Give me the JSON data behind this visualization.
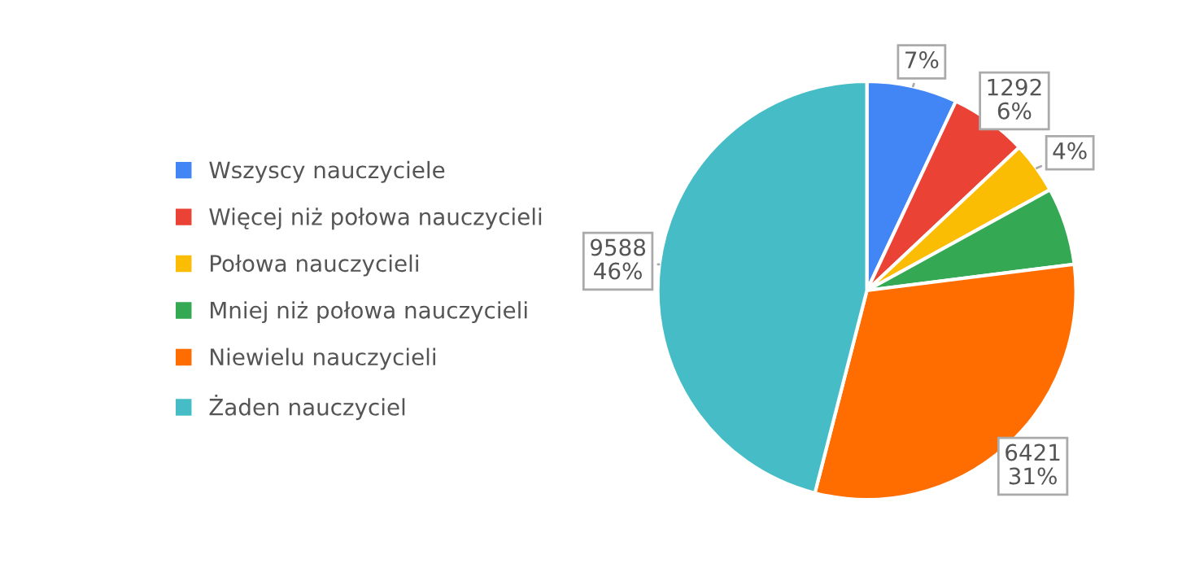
{
  "chart_data": {
    "type": "pie",
    "categories": [
      "Wszyscy nauczyciele",
      "Więcej niż połowa nauczycieli",
      "Połowa nauczycieli",
      "Mniej niż połowa nauczycieli",
      "Niewielu nauczycieli",
      "Żaden nauczyciel"
    ],
    "values": [
      7,
      6,
      4,
      6,
      31,
      46
    ],
    "colors": [
      "#4285f4",
      "#ea4335",
      "#fbbc04",
      "#34a853",
      "#ff6d01",
      "#46bdc6"
    ],
    "value_labels": [
      "7%",
      "1292\n6%",
      "4%",
      null,
      "6421\n31%",
      "9588\n46%"
    ],
    "legend": "left"
  }
}
